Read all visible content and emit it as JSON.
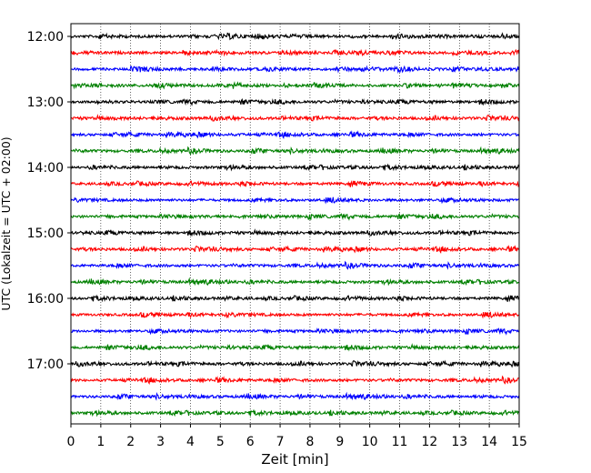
{
  "chart_data": {
    "type": "line",
    "title": "",
    "xlabel": "Zeit  [min]",
    "ylabel": "UTC (Lokalzeit = UTC + 02:00)",
    "xlim": [
      0,
      15
    ],
    "x_ticks": [
      "0",
      "1",
      "2",
      "3",
      "4",
      "5",
      "6",
      "7",
      "8",
      "9",
      "10",
      "11",
      "12",
      "13",
      "14",
      "15"
    ],
    "y_ticks": [
      "12:00",
      "13:00",
      "14:00",
      "15:00",
      "16:00",
      "17:00"
    ],
    "grid": "vertical-dotted",
    "trace_interval_min": 15,
    "trace_colors": [
      "#000000",
      "#ff0000",
      "#0000ff",
      "#008000"
    ],
    "traces": [
      {
        "start": "12:00"
      },
      {
        "start": "12:15"
      },
      {
        "start": "12:30"
      },
      {
        "start": "12:45"
      },
      {
        "start": "13:00"
      },
      {
        "start": "13:15"
      },
      {
        "start": "13:30"
      },
      {
        "start": "13:45"
      },
      {
        "start": "14:00"
      },
      {
        "start": "14:15"
      },
      {
        "start": "14:30"
      },
      {
        "start": "14:45"
      },
      {
        "start": "15:00"
      },
      {
        "start": "15:15"
      },
      {
        "start": "15:30"
      },
      {
        "start": "15:45"
      },
      {
        "start": "16:00"
      },
      {
        "start": "16:15"
      },
      {
        "start": "16:30"
      },
      {
        "start": "16:45"
      },
      {
        "start": "17:00"
      },
      {
        "start": "17:15"
      },
      {
        "start": "17:30"
      },
      {
        "start": "17:45"
      }
    ]
  }
}
